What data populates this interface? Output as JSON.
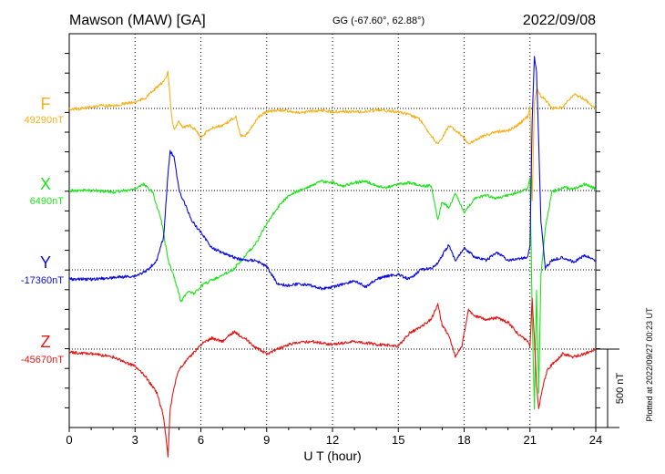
{
  "header": {
    "station": "Mawson (MAW)  [GA]",
    "coords": "GG (-67.60°,  62.88°)",
    "date": "2022/09/08"
  },
  "footnote": "Plotted at 2022/09/27 00:23 UT",
  "chart_data": {
    "type": "line",
    "title": "Mawson (MAW)  [GA]",
    "xlabel": "U T (hour)",
    "xlim": [
      0,
      24
    ],
    "x_ticks": [
      "0",
      "3",
      "6",
      "9",
      "12",
      "15",
      "18",
      "21",
      "24"
    ],
    "x_tick_values": [
      0,
      3,
      6,
      9,
      12,
      15,
      18,
      21,
      24
    ],
    "grid": true,
    "scale_bar": {
      "label": "500 nT",
      "value": 500
    },
    "series": [
      {
        "name": "F",
        "baseline_label": "49290nT",
        "baseline": 49290,
        "color": "#f5b21c",
        "x": [
          0,
          0.5,
          1,
          1.5,
          2,
          2.5,
          3,
          3.5,
          3.8,
          4.2,
          4.4,
          4.5,
          4.6,
          4.7,
          4.8,
          5,
          5.2,
          5.5,
          5.8,
          6,
          6.3,
          6.6,
          7,
          7.3,
          7.6,
          7.8,
          8,
          8.3,
          8.6,
          9,
          9.5,
          10,
          10.5,
          11,
          11.5,
          12,
          12.5,
          13,
          13.5,
          14,
          14.5,
          15,
          15.5,
          16,
          16.3,
          16.6,
          16.8,
          17,
          17.3,
          17.6,
          17.9,
          18.2,
          18.5,
          19,
          19.5,
          20,
          20.5,
          20.9,
          21.0,
          21.05,
          21.1,
          21.15,
          21.2,
          21.3,
          21.5,
          21.8,
          22,
          22.5,
          23,
          23.5,
          24
        ],
        "y": [
          49285,
          49290,
          49300,
          49310,
          49305,
          49320,
          49330,
          49360,
          49400,
          49450,
          49480,
          49520,
          49350,
          49200,
          49150,
          49210,
          49170,
          49180,
          49150,
          49100,
          49150,
          49170,
          49180,
          49210,
          49240,
          49120,
          49110,
          49170,
          49230,
          49270,
          49280,
          49275,
          49260,
          49270,
          49280,
          49270,
          49270,
          49270,
          49270,
          49280,
          49275,
          49270,
          49250,
          49220,
          49150,
          49100,
          49060,
          49100,
          49180,
          49150,
          49120,
          49060,
          49090,
          49120,
          49140,
          49150,
          49190,
          49240,
          49300,
          49000,
          48700,
          49000,
          49320,
          49420,
          49370,
          49330,
          49290,
          49300,
          49380,
          49350,
          49290
        ]
      },
      {
        "name": "X",
        "baseline_label": "6490nT",
        "baseline": 6490,
        "color": "#1ee31a",
        "x": [
          0,
          1,
          2,
          3,
          3.4,
          3.8,
          4.2,
          4.5,
          4.8,
          5.1,
          5.4,
          5.7,
          6,
          6.5,
          7,
          7.5,
          8,
          8.5,
          9,
          9.5,
          10,
          10.5,
          11,
          11.5,
          12,
          12.5,
          13,
          13.5,
          14,
          14.5,
          15,
          15.5,
          16,
          16.5,
          16.8,
          17,
          17.3,
          17.6,
          18,
          18.5,
          19,
          19.5,
          20,
          20.5,
          20.9,
          21.0,
          21.1,
          21.2,
          21.3,
          21.4,
          21.5,
          21.7,
          22,
          22.5,
          23,
          23.5,
          24
        ],
        "y": [
          6490,
          6490,
          6480,
          6500,
          6530,
          6480,
          6300,
          6050,
          5930,
          5780,
          5850,
          5830,
          5880,
          5920,
          5950,
          5990,
          6070,
          6150,
          6280,
          6380,
          6460,
          6490,
          6520,
          6550,
          6540,
          6520,
          6540,
          6550,
          6520,
          6510,
          6530,
          6540,
          6520,
          6520,
          6300,
          6420,
          6380,
          6470,
          6350,
          6440,
          6460,
          6440,
          6460,
          6480,
          6500,
          6580,
          5700,
          5100,
          5850,
          5200,
          5950,
          6250,
          6480,
          6510,
          6500,
          6530,
          6500
        ]
      },
      {
        "name": "Y",
        "baseline_label": "-17360nT",
        "baseline": -17360,
        "color": "#0b0be0",
        "x": [
          0,
          1,
          2,
          3,
          3.5,
          4,
          4.3,
          4.5,
          4.6,
          4.8,
          5,
          5.3,
          5.6,
          6,
          6.5,
          7,
          7.5,
          8,
          8.5,
          9,
          9.5,
          10,
          10.5,
          11,
          11.5,
          12,
          12.5,
          13,
          13.5,
          14,
          14.5,
          15,
          15.5,
          16,
          16.5,
          16.8,
          17,
          17.3,
          17.6,
          18,
          18.5,
          19,
          19.5,
          20,
          20.5,
          20.9,
          21.0,
          21.1,
          21.2,
          21.3,
          21.4,
          21.5,
          21.7,
          22,
          22.5,
          23,
          23.5,
          24
        ],
        "y": [
          -17420,
          -17420,
          -17410,
          -17400,
          -17370,
          -17300,
          -17150,
          -16750,
          -16600,
          -16650,
          -16850,
          -16950,
          -17050,
          -17120,
          -17220,
          -17250,
          -17280,
          -17300,
          -17300,
          -17340,
          -17450,
          -17460,
          -17450,
          -17460,
          -17480,
          -17470,
          -17450,
          -17430,
          -17470,
          -17420,
          -17400,
          -17390,
          -17420,
          -17360,
          -17350,
          -17320,
          -17270,
          -17200,
          -17300,
          -17220,
          -17280,
          -17300,
          -17250,
          -17300,
          -17290,
          -17280,
          -17200,
          -16400,
          -16000,
          -16100,
          -16550,
          -17050,
          -17350,
          -17300,
          -17280,
          -17310,
          -17270,
          -17300
        ]
      },
      {
        "name": "Z",
        "baseline_label": "-45670nT",
        "baseline": -45670,
        "color": "#e51515",
        "x": [
          0,
          1,
          2,
          2.5,
          3,
          3.5,
          4,
          4.3,
          4.5,
          4.6,
          4.8,
          5,
          5.5,
          6,
          6.5,
          7,
          7.5,
          8,
          8.5,
          9,
          10,
          11,
          12,
          13,
          14,
          15,
          15.5,
          16,
          16.5,
          16.8,
          17,
          17.3,
          17.6,
          17.9,
          18.2,
          18.5,
          19,
          19.5,
          20,
          20.5,
          20.9,
          21.0,
          21.1,
          21.2,
          21.3,
          21.4,
          21.6,
          21.8,
          22,
          22.5,
          23,
          23.5,
          24
        ],
        "y": [
          -45690,
          -45700,
          -45720,
          -45750,
          -45780,
          -45850,
          -45950,
          -46100,
          -46350,
          -46050,
          -45900,
          -45800,
          -45720,
          -45640,
          -45600,
          -45620,
          -45560,
          -45600,
          -45660,
          -45700,
          -45640,
          -45620,
          -45640,
          -45620,
          -45640,
          -45650,
          -45570,
          -45530,
          -45480,
          -45380,
          -45520,
          -45580,
          -45720,
          -45650,
          -45420,
          -45460,
          -45480,
          -45470,
          -45500,
          -45580,
          -45620,
          -45660,
          -45350,
          -45600,
          -45900,
          -46050,
          -45900,
          -45800,
          -45770,
          -45700,
          -45720,
          -45700,
          -45670
        ]
      }
    ]
  }
}
